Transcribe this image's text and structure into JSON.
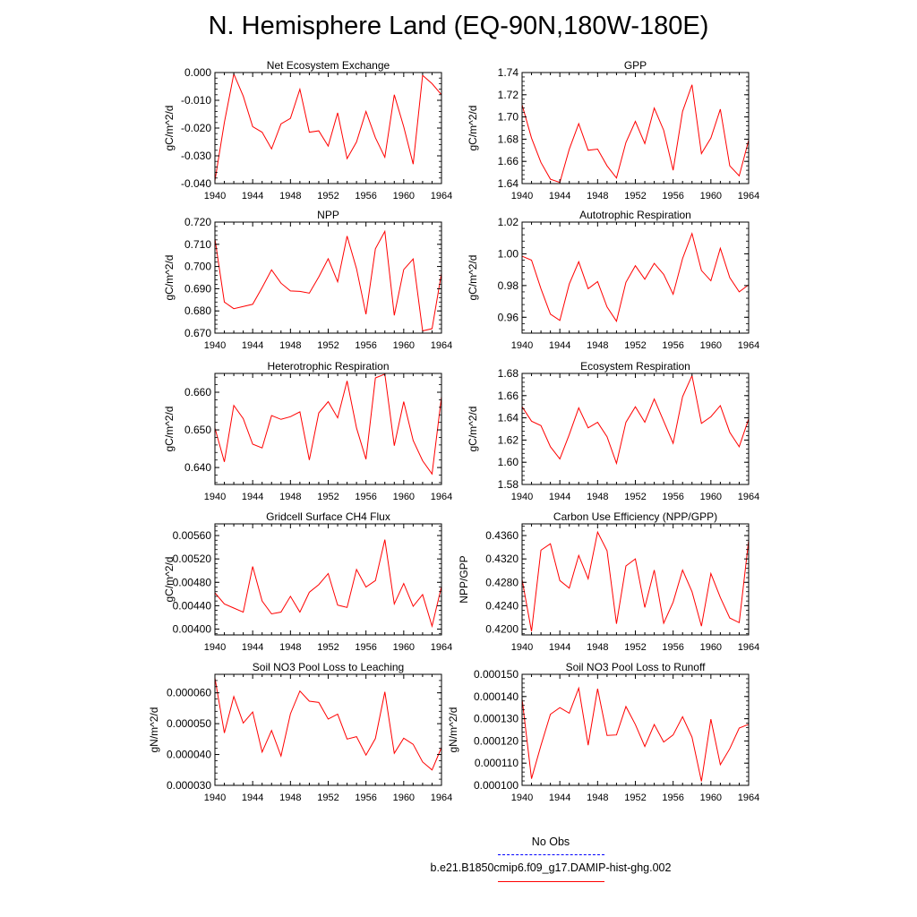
{
  "title": "N. Hemisphere Land (EQ-90N,180W-180E)",
  "colors": {
    "model_line": "#ff0000",
    "obs_line": "#0000ff"
  },
  "legend": {
    "obs_label": "No Obs",
    "model_label": "b.e21.B1850cmip6.f09_g17.DAMIP-hist-ghg.002"
  },
  "chart_data": [
    {
      "type": "line",
      "title": "Net Ecosystem Exchange",
      "xlabel": "",
      "ylabel": "gC/m^2/d",
      "xlim": [
        1940,
        1964
      ],
      "ylim": [
        -0.04,
        0.0
      ],
      "xticks": [
        "1940",
        "1944",
        "1948",
        "1952",
        "1956",
        "1960",
        "1964"
      ],
      "yticks": [
        "-0.040",
        "-0.030",
        "-0.020",
        "-0.010",
        "0.000"
      ],
      "x": [
        1940,
        1941,
        1942,
        1943,
        1944,
        1945,
        1946,
        1947,
        1948,
        1949,
        1950,
        1951,
        1952,
        1953,
        1954,
        1955,
        1956,
        1957,
        1958,
        1959,
        1960,
        1961,
        1962,
        1963,
        1964
      ],
      "values": [
        -0.039,
        -0.018,
        -0.0005,
        -0.0085,
        -0.0195,
        -0.0215,
        -0.0275,
        -0.0185,
        -0.0165,
        -0.006,
        -0.0215,
        -0.021,
        -0.0265,
        -0.0145,
        -0.031,
        -0.025,
        -0.014,
        -0.0235,
        -0.0305,
        -0.008,
        -0.0195,
        -0.033,
        -0.001,
        -0.004,
        -0.008
      ]
    },
    {
      "type": "line",
      "title": "GPP",
      "xlabel": "",
      "ylabel": "gC/m^2/d",
      "xlim": [
        1940,
        1964
      ],
      "ylim": [
        1.64,
        1.74
      ],
      "xticks": [
        "1940",
        "1944",
        "1948",
        "1952",
        "1956",
        "1960",
        "1964"
      ],
      "yticks": [
        "1.64",
        "1.66",
        "1.68",
        "1.70",
        "1.72",
        "1.74"
      ],
      "x": [
        1940,
        1941,
        1942,
        1943,
        1944,
        1945,
        1946,
        1947,
        1948,
        1949,
        1950,
        1951,
        1952,
        1953,
        1954,
        1955,
        1956,
        1957,
        1958,
        1959,
        1960,
        1961,
        1962,
        1963,
        1964
      ],
      "values": [
        1.711,
        1.681,
        1.659,
        1.644,
        1.641,
        1.671,
        1.694,
        1.67,
        1.671,
        1.656,
        1.645,
        1.677,
        1.696,
        1.676,
        1.708,
        1.688,
        1.652,
        1.705,
        1.729,
        1.667,
        1.681,
        1.707,
        1.656,
        1.647,
        1.679
      ]
    },
    {
      "type": "line",
      "title": "NPP",
      "xlabel": "",
      "ylabel": "gC/m^2/d",
      "xlim": [
        1940,
        1964
      ],
      "ylim": [
        0.67,
        0.72
      ],
      "xticks": [
        "1940",
        "1944",
        "1948",
        "1952",
        "1956",
        "1960",
        "1964"
      ],
      "yticks": [
        "0.670",
        "0.680",
        "0.690",
        "0.700",
        "0.710",
        "0.720"
      ],
      "x": [
        1940,
        1941,
        1942,
        1943,
        1944,
        1945,
        1946,
        1947,
        1948,
        1949,
        1950,
        1951,
        1952,
        1953,
        1954,
        1955,
        1956,
        1957,
        1958,
        1959,
        1960,
        1961,
        1962,
        1963,
        1964
      ],
      "values": [
        0.7125,
        0.684,
        0.681,
        0.682,
        0.683,
        0.6905,
        0.6985,
        0.6925,
        0.689,
        0.6888,
        0.688,
        0.6953,
        0.7035,
        0.6931,
        0.7137,
        0.699,
        0.6785,
        0.708,
        0.7158,
        0.678,
        0.6986,
        0.7034,
        0.671,
        0.672,
        0.697
      ]
    },
    {
      "type": "line",
      "title": "Autotrophic Respiration",
      "xlabel": "",
      "ylabel": "gC/m^2/d",
      "xlim": [
        1940,
        1964
      ],
      "ylim": [
        0.95,
        1.02
      ],
      "xticks": [
        "1940",
        "1944",
        "1948",
        "1952",
        "1956",
        "1960",
        "1964"
      ],
      "yticks": [
        "0.96",
        "0.98",
        "1.00",
        "1.02"
      ],
      "x": [
        1940,
        1941,
        1942,
        1943,
        1944,
        1945,
        1946,
        1947,
        1948,
        1949,
        1950,
        1951,
        1952,
        1953,
        1954,
        1955,
        1956,
        1957,
        1958,
        1959,
        1960,
        1961,
        1962,
        1963,
        1964
      ],
      "values": [
        0.9985,
        0.996,
        0.978,
        0.962,
        0.958,
        0.981,
        0.995,
        0.978,
        0.9825,
        0.9665,
        0.9575,
        0.982,
        0.9925,
        0.984,
        0.994,
        0.987,
        0.9745,
        0.997,
        1.0128,
        0.9895,
        0.983,
        1.0035,
        0.985,
        0.976,
        0.9805
      ]
    },
    {
      "type": "line",
      "title": "Heterotrophic Respiration",
      "xlabel": "",
      "ylabel": "gC/m^2/d",
      "xlim": [
        1940,
        1964
      ],
      "ylim": [
        0.6355,
        0.665
      ],
      "xticks": [
        "1940",
        "1944",
        "1948",
        "1952",
        "1956",
        "1960",
        "1964"
      ],
      "yticks": [
        "0.640",
        "0.650",
        "0.660"
      ],
      "x": [
        1940,
        1941,
        1942,
        1943,
        1944,
        1945,
        1946,
        1947,
        1948,
        1949,
        1950,
        1951,
        1952,
        1953,
        1954,
        1955,
        1956,
        1957,
        1958,
        1959,
        1960,
        1961,
        1962,
        1963,
        1964
      ],
      "values": [
        0.6505,
        0.6415,
        0.6565,
        0.653,
        0.6462,
        0.6452,
        0.6538,
        0.6528,
        0.6535,
        0.6548,
        0.642,
        0.6545,
        0.6575,
        0.6532,
        0.663,
        0.6505,
        0.6422,
        0.6638,
        0.6648,
        0.6458,
        0.6575,
        0.6472,
        0.6418,
        0.6383,
        0.6588
      ]
    },
    {
      "type": "line",
      "title": "Ecosystem Respiration",
      "xlabel": "",
      "ylabel": "gC/m^2/d",
      "xlim": [
        1940,
        1964
      ],
      "ylim": [
        1.58,
        1.68
      ],
      "xticks": [
        "1940",
        "1944",
        "1948",
        "1952",
        "1956",
        "1960",
        "1964"
      ],
      "yticks": [
        "1.58",
        "1.60",
        "1.62",
        "1.64",
        "1.66",
        "1.68"
      ],
      "x": [
        1940,
        1941,
        1942,
        1943,
        1944,
        1945,
        1946,
        1947,
        1948,
        1949,
        1950,
        1951,
        1952,
        1953,
        1954,
        1955,
        1956,
        1957,
        1958,
        1959,
        1960,
        1961,
        1962,
        1963,
        1964
      ],
      "values": [
        1.65,
        1.637,
        1.633,
        1.614,
        1.603,
        1.625,
        1.649,
        1.631,
        1.636,
        1.623,
        1.599,
        1.636,
        1.65,
        1.636,
        1.657,
        1.637,
        1.617,
        1.659,
        1.678,
        1.635,
        1.641,
        1.651,
        1.627,
        1.614,
        1.639
      ]
    },
    {
      "type": "line",
      "title": "Gridcell Surface CH4 Flux",
      "xlabel": "",
      "ylabel": "gC/m^2/d",
      "xlim": [
        1940,
        1964
      ],
      "ylim": [
        0.0039,
        0.0058
      ],
      "xticks": [
        "1940",
        "1944",
        "1948",
        "1952",
        "1956",
        "1960",
        "1964"
      ],
      "yticks": [
        "0.00400",
        "0.00440",
        "0.00480",
        "0.00520",
        "0.00560"
      ],
      "x": [
        1940,
        1941,
        1942,
        1943,
        1944,
        1945,
        1946,
        1947,
        1948,
        1949,
        1950,
        1951,
        1952,
        1953,
        1954,
        1955,
        1956,
        1957,
        1958,
        1959,
        1960,
        1961,
        1962,
        1963,
        1964
      ],
      "values": [
        0.00462,
        0.00443,
        0.00436,
        0.00429,
        0.00507,
        0.00448,
        0.00426,
        0.00429,
        0.00456,
        0.00429,
        0.00463,
        0.00476,
        0.00495,
        0.00441,
        0.00437,
        0.00502,
        0.00472,
        0.00483,
        0.00553,
        0.00443,
        0.00478,
        0.00439,
        0.00459,
        0.00405,
        0.00473
      ]
    },
    {
      "type": "line",
      "title": "Carbon Use Efficiency (NPP/GPP)",
      "xlabel": "",
      "ylabel": "NPP/GPP",
      "xlim": [
        1940,
        1964
      ],
      "ylim": [
        0.419,
        0.438
      ],
      "xticks": [
        "1940",
        "1944",
        "1948",
        "1952",
        "1956",
        "1960",
        "1964"
      ],
      "yticks": [
        "0.4200",
        "0.4240",
        "0.4280",
        "0.4320",
        "0.4360"
      ],
      "x": [
        1940,
        1941,
        1942,
        1943,
        1944,
        1945,
        1946,
        1947,
        1948,
        1949,
        1950,
        1951,
        1952,
        1953,
        1954,
        1955,
        1956,
        1957,
        1958,
        1959,
        1960,
        1961,
        1962,
        1963,
        1964
      ],
      "values": [
        0.4285,
        0.4196,
        0.4335,
        0.4346,
        0.4283,
        0.427,
        0.4326,
        0.4286,
        0.4366,
        0.4334,
        0.4209,
        0.4308,
        0.432,
        0.4237,
        0.4301,
        0.421,
        0.4246,
        0.4301,
        0.4264,
        0.4205,
        0.4295,
        0.4254,
        0.4219,
        0.4211,
        0.4352
      ]
    },
    {
      "type": "line",
      "title": "Soil NO3 Pool Loss to Leaching",
      "xlabel": "",
      "ylabel": "gN/m^2/d",
      "xlim": [
        1940,
        1964
      ],
      "ylim": [
        3e-05,
        6.6e-05
      ],
      "xticks": [
        "1940",
        "1944",
        "1948",
        "1952",
        "1956",
        "1960",
        "1964"
      ],
      "yticks": [
        "0.000030",
        "0.000040",
        "0.000050",
        "0.000060"
      ],
      "x": [
        1940,
        1941,
        1942,
        1943,
        1944,
        1945,
        1946,
        1947,
        1948,
        1949,
        1950,
        1951,
        1952,
        1953,
        1954,
        1955,
        1956,
        1957,
        1958,
        1959,
        1960,
        1961,
        1962,
        1963,
        1964
      ],
      "values": [
        6.48e-05,
        4.7e-05,
        5.88e-05,
        5.02e-05,
        5.38e-05,
        4.08e-05,
        4.78e-05,
        3.95e-05,
        5.32e-05,
        6.06e-05,
        5.73e-05,
        5.69e-05,
        5.15e-05,
        5.31e-05,
        4.5e-05,
        4.58e-05,
        3.98e-05,
        4.52e-05,
        6.03e-05,
        4.04e-05,
        4.53e-05,
        4.33e-05,
        3.76e-05,
        3.5e-05,
        4.23e-05
      ]
    },
    {
      "type": "line",
      "title": "Soil NO3 Pool Loss to Runoff",
      "xlabel": "",
      "ylabel": "gN/m^2/d",
      "xlim": [
        1940,
        1964
      ],
      "ylim": [
        0.0001,
        0.00015
      ],
      "xticks": [
        "1940",
        "1944",
        "1948",
        "1952",
        "1956",
        "1960",
        "1964"
      ],
      "yticks": [
        "0.000100",
        "0.000110",
        "0.000120",
        "0.000130",
        "0.000140",
        "0.000150"
      ],
      "x": [
        1940,
        1941,
        1942,
        1943,
        1944,
        1945,
        1946,
        1947,
        1948,
        1949,
        1950,
        1951,
        1952,
        1953,
        1954,
        1955,
        1956,
        1957,
        1958,
        1959,
        1960,
        1961,
        1962,
        1963,
        1964
      ],
      "values": [
        0.000139,
        0.000103,
        0.000118,
        0.000132,
        0.000135,
        0.0001325,
        0.0001438,
        0.0001181,
        0.0001435,
        0.0001225,
        0.0001227,
        0.0001355,
        0.0001274,
        0.0001175,
        0.0001274,
        0.0001195,
        0.0001227,
        0.0001309,
        0.0001217,
        0.0001018,
        0.0001298,
        0.0001093,
        0.0001165,
        0.0001258,
        0.0001275
      ]
    }
  ]
}
